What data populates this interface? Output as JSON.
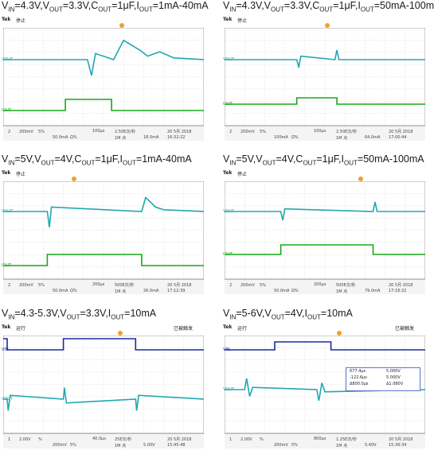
{
  "panels": [
    {
      "title_html": "V<sub>IN</sub>=4.3V,V<sub>OUT</sub>=3.3V,C<sub>OUT</sub>=1μF,I<sub>OUT</sub>=1mA-40mA",
      "brand": "Tek",
      "state": "停止",
      "acq": "",
      "status": [
        "2",
        "200mV",
        "5%",
        "50.0mA",
        "Ω%",
        "100μs",
        "2.50E次/秒",
        "1M 点",
        "18.0mA",
        "20 5月 2018",
        "16:32:22"
      ]
    },
    {
      "title_html": "V<sub>IN</sub>=4.3V,V<sub>OUT</sub>=3.3V,C<sub>OUT</sub>=1μF,I<sub>OUT</sub>=50mA-100mA",
      "brand": "Tek",
      "state": "停止",
      "acq": "",
      "status": [
        "2",
        "200mV",
        "5%",
        "100mA",
        "Ω%",
        "100μs",
        "2.50E次/秒",
        "1M 点",
        "64.0mA",
        "20 5月 2018",
        "17:00:44"
      ]
    },
    {
      "title_html": "V<sub>IN</sub>=5V,V<sub>OUT</sub>=4V,C<sub>OUT</sub>=1μF,I<sub>OUT</sub>=1mA-40mA",
      "brand": "Tek",
      "state": "停止",
      "acq": "",
      "status": [
        "2",
        "200mV",
        "5%",
        "50.0mA",
        "Ω%",
        "200μs",
        "500E次/秒",
        "1M 点",
        "26.0mA",
        "20 5月 2018",
        "17:12:39"
      ]
    },
    {
      "title_html": "V<sub>IN</sub>=5V,V<sub>OUT</sub>=4V,C<sub>OUT</sub>=1μF,I<sub>OUT</sub>=50mA-100mA",
      "brand": "Tek",
      "state": "停止",
      "acq": "",
      "status": [
        "2",
        "200mV",
        "5%",
        "50.0mA",
        "Ω%",
        "200μs",
        "500E次/秒",
        "1M 点",
        "79.0mA",
        "20 5月 2018",
        "17:16:22"
      ]
    },
    {
      "title_html": "V<sub>IN</sub>=4.3-5.3V,V<sub>OUT</sub>=3.3V,I<sub>OUT</sub>=10mA",
      "brand": "Tek",
      "state": "运行",
      "acq": "已被触发",
      "status": [
        "1",
        "2.00V",
        "%",
        "200mV",
        "5%",
        "40.0μs",
        "25E次/秒",
        "1M 点",
        "5.00V",
        "20 5月 2018",
        "15:45:48"
      ]
    },
    {
      "title_html": "V<sub>IN</sub>=5-6V,V<sub>OUT</sub>=4V,I<sub>OUT</sub>=10mA",
      "brand": "Tek",
      "state": "运行",
      "acq": "已被触发",
      "status": [
        "1",
        "2.00V",
        "%",
        "200mV",
        "5%",
        "800μs",
        "1.25E次/秒",
        "1M 点",
        "5.40V",
        "20 5月 2018",
        "15:36:34"
      ],
      "cursor": [
        "677.4μs",
        "-122.6μs",
        "Δ800.0μs",
        "5.000V",
        "5.000V",
        "Δ1.080V"
      ]
    }
  ],
  "channel_labels": {
    "vout": "VOUT",
    "iout": "IOUT",
    "vin": "VIN"
  },
  "colors": {
    "cyan": "#20a8b0",
    "green": "#18a818",
    "blue": "#1a2aa0",
    "grid": "#c8c8c8"
  },
  "chart_data": [
    {
      "type": "line",
      "series": [
        {
          "name": "VOUT",
          "x": [
            0,
            4.2,
            4.4,
            4.6,
            5.5,
            6.0,
            6.8,
            7.2,
            7.8,
            8.5,
            10
          ],
          "y": [
            0,
            0,
            -0.9,
            0.35,
            0,
            1.1,
            0.55,
            0.2,
            0.45,
            0.1,
            0
          ]
        },
        {
          "name": "IOUT",
          "x": [
            0,
            3.1,
            3.1,
            5.4,
            5.4,
            10
          ],
          "y": [
            0,
            0,
            1,
            1,
            0,
            0
          ]
        }
      ]
    },
    {
      "type": "line",
      "series": [
        {
          "name": "VOUT",
          "x": [
            0,
            3.6,
            3.7,
            3.8,
            5.5,
            5.6,
            5.7,
            10
          ],
          "y": [
            0,
            0,
            -0.45,
            0.2,
            0,
            0.55,
            0,
            0
          ]
        },
        {
          "name": "IOUT",
          "x": [
            0,
            3.6,
            3.6,
            5.6,
            5.6,
            10
          ],
          "y": [
            0,
            0,
            1,
            1,
            0,
            0
          ]
        }
      ]
    },
    {
      "type": "line",
      "series": [
        {
          "name": "VOUT",
          "x": [
            0,
            2.2,
            2.3,
            2.4,
            6.9,
            7.1,
            7.6,
            8.0,
            10
          ],
          "y": [
            0,
            0,
            -0.9,
            0.25,
            0,
            0.8,
            0.25,
            0.1,
            0
          ]
        },
        {
          "name": "IOUT",
          "x": [
            0,
            2.2,
            2.2,
            6.9,
            6.9,
            10
          ],
          "y": [
            0,
            0,
            1,
            1,
            0,
            0
          ]
        }
      ]
    },
    {
      "type": "line",
      "series": [
        {
          "name": "VOUT",
          "x": [
            0,
            2.8,
            2.9,
            3.0,
            7.4,
            7.5,
            7.6,
            10
          ],
          "y": [
            0,
            0,
            -0.5,
            0.15,
            0,
            0.55,
            0,
            0
          ]
        },
        {
          "name": "IOUT",
          "x": [
            0,
            2.8,
            2.8,
            7.4,
            7.4,
            10
          ],
          "y": [
            0,
            0,
            1,
            1,
            0,
            0
          ]
        }
      ]
    },
    {
      "type": "line",
      "series": [
        {
          "name": "VIN",
          "x": [
            0,
            0.2,
            0.2,
            3.0,
            3.0,
            6.6,
            6.6,
            10
          ],
          "y": [
            1,
            1,
            0,
            0,
            1,
            1,
            0,
            0
          ]
        },
        {
          "name": "VOUT",
          "x": [
            0,
            0.2,
            0.25,
            0.35,
            3.0,
            3.05,
            3.15,
            6.6,
            6.65,
            6.75,
            10
          ],
          "y": [
            0,
            0,
            -1.2,
            0.4,
            0,
            1.2,
            -0.4,
            0,
            -1.2,
            0.4,
            0
          ]
        }
      ]
    },
    {
      "type": "line",
      "series": [
        {
          "name": "VIN",
          "x": [
            0,
            2.5,
            2.5,
            5.3,
            5.3,
            10
          ],
          "y": [
            0,
            0,
            1,
            1,
            0,
            0
          ]
        },
        {
          "name": "VOUT",
          "x": [
            0,
            1.0,
            1.1,
            1.25,
            1.4,
            4.6,
            4.7,
            4.85,
            5.0,
            10
          ],
          "y": [
            0,
            0,
            1.0,
            -0.6,
            0.2,
            0,
            -1.0,
            0.6,
            -0.2,
            0
          ]
        }
      ]
    }
  ]
}
